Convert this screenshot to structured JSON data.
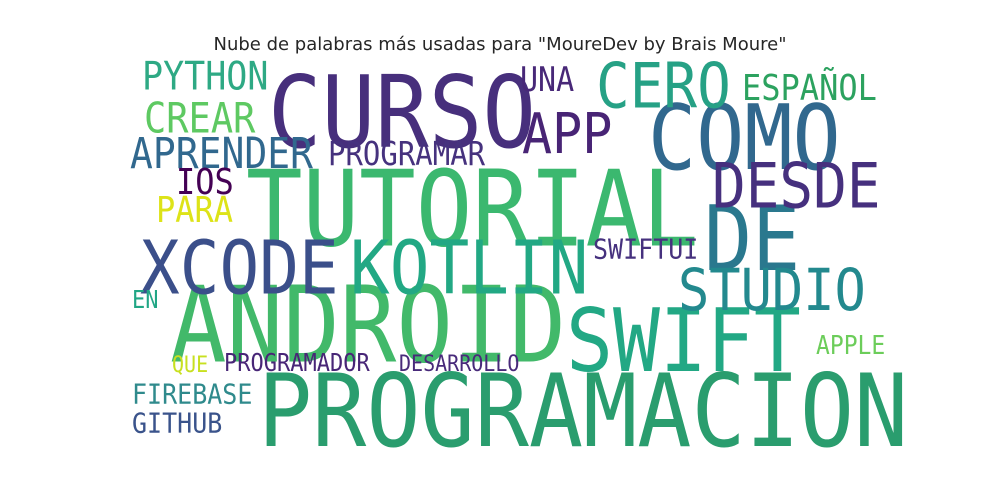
{
  "title": "Nube de palabras más usadas para \"MoureDev by Brais Moure\"",
  "words": [
    {
      "text": "PROGRAMACION",
      "color": "#2a9d6e"
    },
    {
      "text": "TUTORIAL",
      "color": "#3bb86f"
    },
    {
      "text": "ANDROID",
      "color": "#42b96a"
    },
    {
      "text": "CURSO",
      "color": "#472f7c"
    },
    {
      "text": "COMO",
      "color": "#31688e"
    },
    {
      "text": "SWIFT",
      "color": "#22a884"
    },
    {
      "text": "DE",
      "color": "#2a788e"
    },
    {
      "text": "XCODE",
      "color": "#3b4f8a"
    },
    {
      "text": "KOTLIN",
      "color": "#22a884"
    },
    {
      "text": "DESDE",
      "color": "#46307e"
    },
    {
      "text": "STUDIO",
      "color": "#23898e"
    },
    {
      "text": "CERO",
      "color": "#26a185"
    },
    {
      "text": "APP",
      "color": "#482475"
    },
    {
      "text": "APRENDER",
      "color": "#31688e"
    },
    {
      "text": "PROGRAMAR",
      "color": "#46327e"
    },
    {
      "text": "CREAR",
      "color": "#5ec962"
    },
    {
      "text": "PYTHON",
      "color": "#2ea984"
    },
    {
      "text": "UNA",
      "color": "#482878"
    },
    {
      "text": "ESPAÑOL",
      "color": "#2ca25f"
    },
    {
      "text": "IOS",
      "color": "#440154"
    },
    {
      "text": "PARA",
      "color": "#dde318"
    },
    {
      "text": "SWIFTUI",
      "color": "#46317e"
    },
    {
      "text": "EN",
      "color": "#21a685"
    },
    {
      "text": "APPLE",
      "color": "#6ccd5a"
    },
    {
      "text": "QUE",
      "color": "#c8e020"
    },
    {
      "text": "PROGRAMADOR",
      "color": "#482677"
    },
    {
      "text": "DESARROLLO",
      "color": "#482a7a"
    },
    {
      "text": "FIREBASE",
      "color": "#2f8a8c"
    },
    {
      "text": "GITHUB",
      "color": "#3a538b"
    }
  ]
}
